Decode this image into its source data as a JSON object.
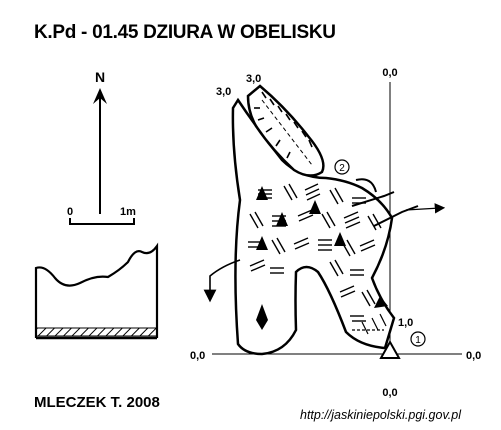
{
  "title": "K.Pd - 01.45 DZIURA W OBELISKU",
  "author": "MLECZEK T. 2008",
  "source": "http://jaskiniepolski.pgi.gov.pl",
  "north": {
    "label": "N"
  },
  "scale_bar": {
    "start": "0",
    "end": "1m"
  },
  "elevations": {
    "top_left_a": "3,0",
    "top_left_b": "3,0",
    "top_right": "0,0",
    "left": "0,0",
    "right": "0,0",
    "bottom": "0,0",
    "entrance": "1,0"
  },
  "markers": {
    "one": "1",
    "two": "2"
  },
  "colors": {
    "ink": "#000000",
    "paper": "#ffffff"
  }
}
